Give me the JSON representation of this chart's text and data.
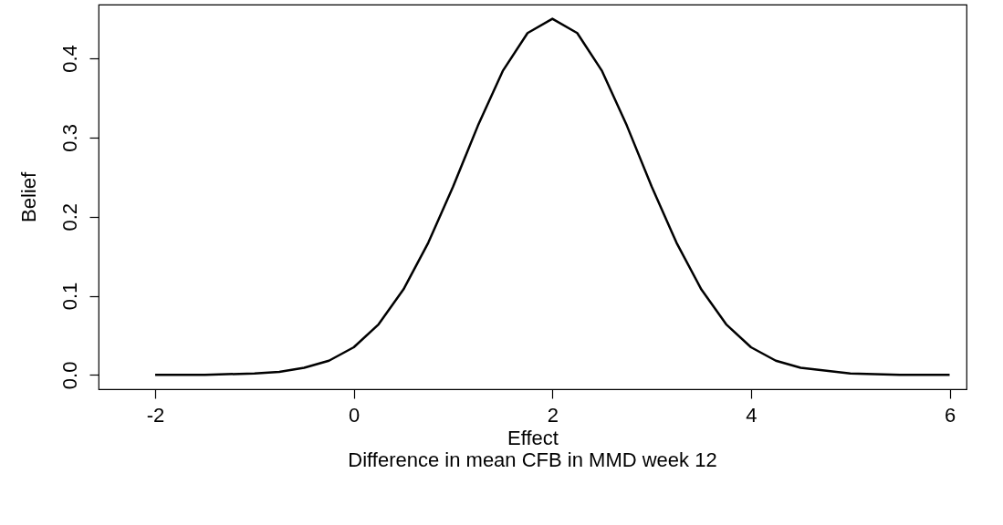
{
  "chart_data": {
    "type": "line",
    "xlabel": "Effect",
    "ylabel": "Belief",
    "annotations": [
      "Difference in mean CFB in MMD week 12"
    ],
    "x": [
      -2,
      -1.5,
      -1,
      -0.75,
      -0.5,
      -0.25,
      0,
      0.25,
      0.5,
      0.75,
      1,
      1.25,
      1.5,
      1.75,
      2,
      2.25,
      2.5,
      2.75,
      3,
      3.25,
      3.5,
      3.75,
      4,
      4.25,
      4.5,
      5,
      5.5,
      6
    ],
    "series": [
      {
        "color": "#000000",
        "values": [
          0,
          0,
          0.002,
          0.004,
          0.009,
          0.018,
          0.035,
          0.064,
          0.108,
          0.167,
          0.238,
          0.315,
          0.384,
          0.432,
          0.45,
          0.432,
          0.384,
          0.315,
          0.238,
          0.167,
          0.108,
          0.064,
          0.035,
          0.018,
          0.009,
          0.002,
          0,
          0
        ]
      }
    ],
    "xlim": [
      -2.57,
      6.17
    ],
    "ylim": [
      -0.018,
      0.468
    ],
    "xticks": [
      -2,
      0,
      2,
      4,
      6
    ],
    "yticks": [
      {
        "value": 0,
        "label": "0.0"
      },
      0.1,
      0.2,
      0.3,
      0.4
    ],
    "grid": false,
    "legend": false,
    "marker": "none",
    "line_style": "solid"
  }
}
